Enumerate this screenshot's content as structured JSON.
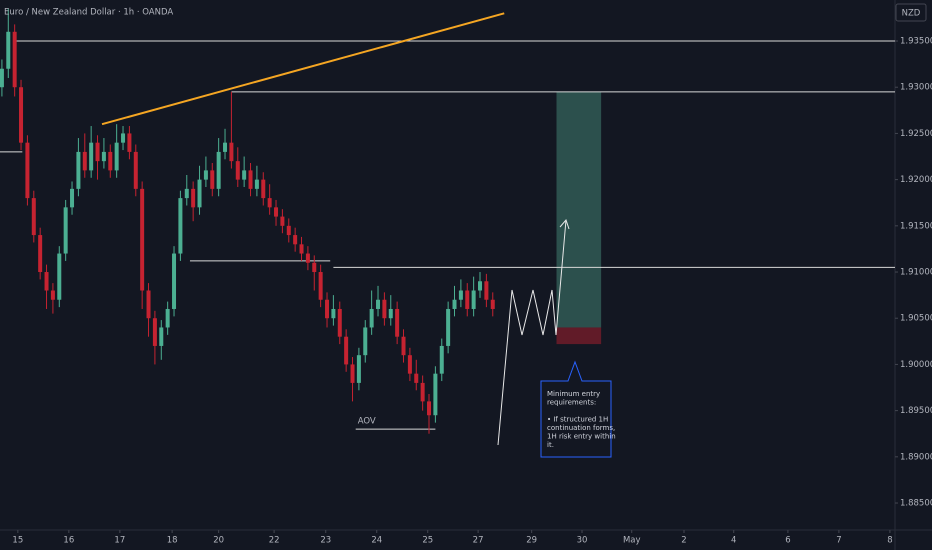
{
  "header": {
    "symbol": "Euro / New Zealand Dollar · 1h · OANDA",
    "currency": "NZD"
  },
  "chart_data": {
    "type": "candlestick",
    "x": [
      0,
      1,
      2,
      3,
      4,
      5,
      6,
      7,
      8,
      9,
      10,
      11,
      12,
      13,
      14,
      15,
      16,
      17,
      18,
      19,
      20,
      21,
      22,
      23,
      24,
      25,
      26,
      27,
      28,
      29,
      30,
      31,
      32,
      33,
      34,
      35,
      36,
      37,
      38,
      39,
      40,
      41,
      42,
      43,
      44,
      45,
      46,
      47,
      48,
      49,
      50,
      51,
      52,
      53,
      54,
      55,
      56,
      57,
      58,
      59,
      60,
      61,
      62,
      63,
      64,
      65,
      66,
      67,
      68,
      69,
      70,
      71,
      72,
      73,
      74,
      75,
      76,
      77
    ],
    "open": [
      1.93,
      1.932,
      1.936,
      1.93,
      1.924,
      1.918,
      1.914,
      1.91,
      1.908,
      1.907,
      1.912,
      1.917,
      1.919,
      1.923,
      1.921,
      1.924,
      1.922,
      1.923,
      1.921,
      1.924,
      1.925,
      1.923,
      1.919,
      1.908,
      1.905,
      1.902,
      1.904,
      1.906,
      1.912,
      1.918,
      1.919,
      1.917,
      1.92,
      1.921,
      1.919,
      1.923,
      1.924,
      1.922,
      1.92,
      1.921,
      1.919,
      1.92,
      1.918,
      1.917,
      1.916,
      1.915,
      1.914,
      1.913,
      1.912,
      1.911,
      1.91,
      1.907,
      1.905,
      1.906,
      1.903,
      1.9,
      1.898,
      1.901,
      1.904,
      1.906,
      1.907,
      1.905,
      1.906,
      1.903,
      1.901,
      1.899,
      1.898,
      1.896,
      1.8945,
      1.899,
      1.902,
      1.906,
      1.907,
      1.908,
      1.906,
      1.908,
      1.909,
      1.907
    ],
    "high": [
      1.933,
      1.9385,
      1.9368,
      1.9308,
      1.9248,
      1.9188,
      1.9148,
      1.9108,
      1.9088,
      1.9128,
      1.9178,
      1.9198,
      1.9245,
      1.925,
      1.9258,
      1.9248,
      1.9245,
      1.9238,
      1.926,
      1.9258,
      1.9258,
      1.9238,
      1.9198,
      1.9088,
      1.9058,
      1.9048,
      1.9068,
      1.9128,
      1.9188,
      1.9205,
      1.9198,
      1.9215,
      1.9225,
      1.9218,
      1.9245,
      1.9255,
      1.9295,
      1.9235,
      1.9225,
      1.9218,
      1.9215,
      1.9208,
      1.9195,
      1.9178,
      1.9168,
      1.9158,
      1.9148,
      1.9138,
      1.9128,
      1.9118,
      1.9108,
      1.9078,
      1.9075,
      1.9068,
      1.9038,
      1.9008,
      1.9018,
      1.9048,
      1.908,
      1.9085,
      1.9078,
      1.9075,
      1.9068,
      1.9038,
      1.9018,
      1.9005,
      1.8988,
      1.8968,
      1.8998,
      1.9028,
      1.9068,
      1.9085,
      1.9092,
      1.9088,
      1.9095,
      1.91,
      1.9098,
      1.9078
    ],
    "low": [
      1.929,
      1.931,
      1.929,
      1.9232,
      1.9172,
      1.9132,
      1.9092,
      1.906,
      1.9055,
      1.9062,
      1.9112,
      1.9162,
      1.9182,
      1.9202,
      1.9202,
      1.92,
      1.9212,
      1.9202,
      1.9202,
      1.9232,
      1.9222,
      1.9182,
      1.906,
      1.903,
      1.9,
      1.9005,
      1.9032,
      1.9052,
      1.9112,
      1.9172,
      1.9155,
      1.9162,
      1.9192,
      1.9182,
      1.9182,
      1.9222,
      1.9212,
      1.9192,
      1.9192,
      1.9182,
      1.9182,
      1.9172,
      1.9162,
      1.915,
      1.9142,
      1.9132,
      1.9122,
      1.9112,
      1.9102,
      1.908,
      1.9062,
      1.904,
      1.9042,
      1.9022,
      1.8992,
      1.896,
      1.8972,
      1.9002,
      1.9032,
      1.9052,
      1.9042,
      1.9042,
      1.9022,
      1.9002,
      1.8982,
      1.8972,
      1.895,
      1.8925,
      1.8937,
      1.8982,
      1.9012,
      1.9052,
      1.9062,
      1.9052,
      1.9052,
      1.9072,
      1.9062,
      1.9052
    ],
    "close": [
      1.932,
      1.936,
      1.93,
      1.924,
      1.918,
      1.914,
      1.91,
      1.908,
      1.907,
      1.912,
      1.917,
      1.919,
      1.923,
      1.921,
      1.924,
      1.922,
      1.923,
      1.921,
      1.924,
      1.925,
      1.923,
      1.919,
      1.908,
      1.905,
      1.902,
      1.904,
      1.906,
      1.912,
      1.918,
      1.919,
      1.917,
      1.92,
      1.921,
      1.919,
      1.923,
      1.924,
      1.922,
      1.92,
      1.921,
      1.919,
      1.92,
      1.918,
      1.917,
      1.916,
      1.915,
      1.914,
      1.913,
      1.912,
      1.911,
      1.91,
      1.907,
      1.905,
      1.906,
      1.903,
      1.9,
      1.898,
      1.901,
      1.904,
      1.906,
      1.907,
      1.905,
      1.906,
      1.903,
      1.901,
      1.899,
      1.898,
      1.896,
      1.8945,
      1.899,
      1.902,
      1.906,
      1.907,
      1.908,
      1.906,
      1.908,
      1.909,
      1.907,
      1.906
    ],
    "up_color": "#4caf92",
    "down_color": "#c62331",
    "xlim": [
      -0.3,
      140.1
    ],
    "ylim": [
      1.88208,
      1.93944
    ],
    "xticks": [
      {
        "value": 2.5,
        "label": "15"
      },
      {
        "value": 10.5,
        "label": "16"
      },
      {
        "value": 18.5,
        "label": "17"
      },
      {
        "value": 26.7,
        "label": "18"
      },
      {
        "value": 34,
        "label": "20"
      },
      {
        "value": 42.7,
        "label": "22"
      },
      {
        "value": 50.8,
        "label": "23"
      },
      {
        "value": 58.8,
        "label": "24"
      },
      {
        "value": 66.8,
        "label": "25"
      },
      {
        "value": 74.7,
        "label": "27"
      },
      {
        "value": 83.1,
        "label": "29"
      },
      {
        "value": 91,
        "label": "30"
      },
      {
        "value": 98.8,
        "label": "May"
      },
      {
        "value": 107,
        "label": "2"
      },
      {
        "value": 114.8,
        "label": "4"
      },
      {
        "value": 123.3,
        "label": "6"
      },
      {
        "value": 131.3,
        "label": "7"
      },
      {
        "value": 139.3,
        "label": "8"
      }
    ],
    "yticks": [
      {
        "value": 1.885,
        "label": "1.88500"
      },
      {
        "value": 1.89,
        "label": "1.89000"
      },
      {
        "value": 1.895,
        "label": "1.89500"
      },
      {
        "value": 1.9,
        "label": "1.90000"
      },
      {
        "value": 1.905,
        "label": "1.90500"
      },
      {
        "value": 1.91,
        "label": "1.91000"
      },
      {
        "value": 1.915,
        "label": "1.91500"
      },
      {
        "value": 1.92,
        "label": "1.92000"
      },
      {
        "value": 1.925,
        "label": "1.92500"
      },
      {
        "value": 1.93,
        "label": "1.93000"
      },
      {
        "value": 1.935,
        "label": "1.93500"
      }
    ],
    "levels": [
      {
        "price": 1.935,
        "from": 2,
        "to": 140.1
      },
      {
        "price": 1.9295,
        "from": 36,
        "to": 140.1
      },
      {
        "price": 1.9105,
        "from": 52,
        "to": 140.1
      },
      {
        "price": 1.9112,
        "from": 29.5,
        "to": 51.5
      },
      {
        "price": 1.923,
        "from": -0.3,
        "to": 3.2
      },
      {
        "price": 1.893,
        "from": 55.5,
        "to": 68
      }
    ],
    "trendline": {
      "from": [
        15.7,
        1.926
      ],
      "to": [
        78.8,
        1.938
      ],
      "color": "#f5a623"
    },
    "position": {
      "from": 87,
      "to": 94,
      "entry": 1.904,
      "stop": 1.9022,
      "target": 1.9295
    },
    "annotation": "AOV",
    "note": [
      "Minimum entry",
      "requirements:",
      "",
      "• If structured 1H",
      "continuation forms,",
      "1H risk entry within",
      "it."
    ]
  }
}
